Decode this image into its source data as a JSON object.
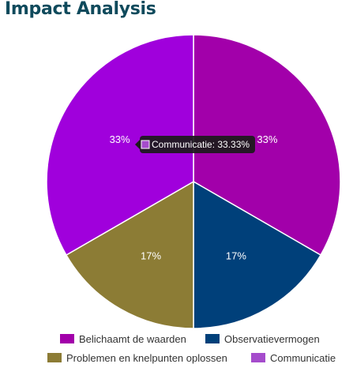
{
  "title": "Impact Analysis",
  "chart_data": {
    "type": "pie",
    "title": "Impact Analysis",
    "categories": [
      "Belichaamt de waarden",
      "Observatievermogen",
      "Problemen en knelpunten oplossen",
      "Communicatie"
    ],
    "values": [
      33.33,
      16.67,
      16.67,
      33.33
    ],
    "data_labels": [
      "33%",
      "17%",
      "17%",
      "33%"
    ],
    "colors": [
      "#a200aa",
      "#00407a",
      "#8c7c35",
      "#a000dc"
    ],
    "legend_colors": [
      "#a200aa",
      "#00407a",
      "#8c7c35",
      "#a54ccc"
    ],
    "legend_position": "bottom",
    "tooltip": {
      "text": "Communicatie: 33.33%",
      "swatch_color": "#a54ccc"
    }
  }
}
